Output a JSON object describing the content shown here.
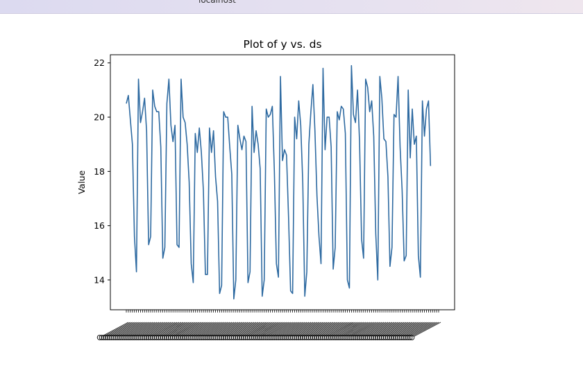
{
  "browser": {
    "url": "localhost"
  },
  "chart_data": {
    "type": "line",
    "title": "Plot of y vs. ds",
    "xlabel": "",
    "ylabel": "Value",
    "ylim": [
      12.9,
      22.3
    ],
    "yticks": [
      14,
      16,
      18,
      20,
      22
    ],
    "x_count": 155,
    "grid": false,
    "series": [
      {
        "color": "#2e6aa1",
        "values": [
          20.5,
          20.8,
          19.9,
          19.0,
          15.6,
          14.3,
          21.4,
          19.8,
          20.2,
          20.7,
          19.5,
          15.3,
          15.6,
          21.0,
          20.4,
          20.2,
          20.2,
          18.9,
          14.8,
          15.2,
          20.5,
          21.4,
          19.7,
          19.1,
          19.7,
          15.3,
          15.2,
          21.4,
          20.0,
          19.8,
          19.0,
          17.6,
          14.6,
          13.9,
          19.4,
          18.7,
          19.6,
          18.7,
          17.3,
          14.2,
          14.2,
          19.6,
          18.7,
          19.5,
          17.8,
          16.9,
          13.5,
          13.8,
          20.2,
          20.0,
          20.0,
          18.9,
          17.9,
          13.3,
          14.0,
          19.7,
          19.2,
          18.8,
          19.3,
          19.1,
          13.9,
          14.3,
          20.4,
          18.7,
          19.5,
          19.0,
          18.1,
          13.4,
          14.0,
          20.3,
          20.0,
          20.1,
          20.4,
          18.0,
          14.6,
          14.1,
          21.5,
          18.4,
          18.8,
          18.6,
          16.3,
          13.6,
          13.5,
          20.0,
          19.2,
          20.6,
          19.7,
          17.6,
          13.4,
          14.3,
          19.0,
          20.2,
          21.2,
          19.5,
          17.1,
          15.6,
          14.6,
          21.8,
          18.8,
          20.0,
          20.0,
          18.9,
          14.4,
          15.2,
          20.2,
          19.9,
          20.4,
          20.3,
          19.4,
          14.0,
          13.7,
          21.9,
          20.1,
          19.8,
          21.0,
          19.1,
          15.5,
          14.8,
          21.4,
          21.1,
          20.2,
          20.6,
          19.3,
          15.7,
          14.0,
          21.5,
          20.7,
          19.2,
          19.1,
          17.8,
          14.5,
          15.2,
          20.1,
          20.0,
          21.5,
          18.9,
          17.3,
          14.7,
          14.9,
          21.0,
          18.5,
          20.3,
          19.0,
          19.3,
          14.9,
          14.1,
          20.6,
          19.3,
          20.3,
          20.6,
          18.2
        ]
      }
    ]
  }
}
